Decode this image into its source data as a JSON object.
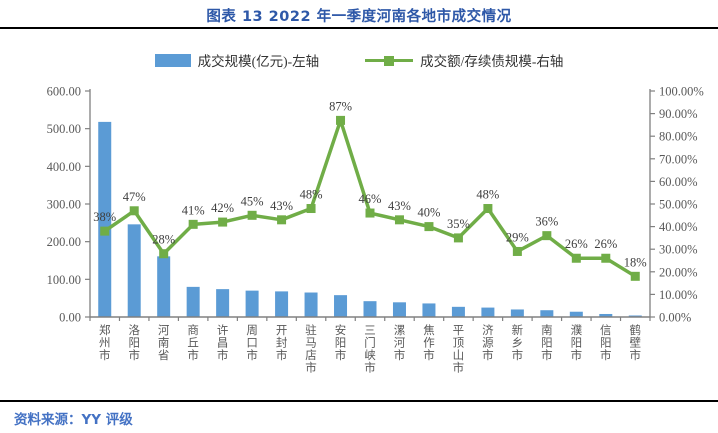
{
  "header": {
    "title": "图表 13 2022 年一季度河南各地市成交情况"
  },
  "legend": {
    "items": [
      {
        "label": "成交规模(亿元)-左轴",
        "type": "bar"
      },
      {
        "label": "成交额/存续债规模-右轴",
        "type": "line"
      }
    ]
  },
  "footer": {
    "source": "资料来源：YY 评级"
  },
  "colors": {
    "bar": "#5B9BD5",
    "line": "#70AD47",
    "axis": "#808080",
    "tick_text": "#595959",
    "value_label": "#404040",
    "category_text": "#595959",
    "title": "#2E58A8",
    "source": "#4472C4"
  },
  "chart_data": {
    "type": "bar",
    "title": "图表 13 2022 年一季度河南各地市成交情况",
    "categories": [
      "郑州市",
      "洛阳市",
      "河南省",
      "商丘市",
      "许昌市",
      "周口市",
      "开封市",
      "驻马店市",
      "安阳市",
      "三门峡市",
      "漯河市",
      "焦作市",
      "平顶山市",
      "济源市",
      "新乡市",
      "南阳市",
      "濮阳市",
      "信阳市",
      "鹤壁市"
    ],
    "series": [
      {
        "name": "成交规模(亿元)-左轴",
        "type": "bar",
        "axis": "left",
        "values": [
          518,
          246,
          161,
          80,
          74,
          70,
          68,
          65,
          58,
          42,
          39,
          36,
          27,
          25,
          20,
          18,
          14,
          8,
          4
        ]
      },
      {
        "name": "成交额/存续债规模-右轴",
        "type": "line",
        "axis": "right",
        "values": [
          38,
          47,
          28,
          41,
          42,
          45,
          43,
          48,
          87,
          46,
          43,
          40,
          35,
          48,
          29,
          36,
          26,
          26,
          18
        ],
        "labels": [
          "38%",
          "47%",
          "28%",
          "41%",
          "42%",
          "45%",
          "43%",
          "48%",
          "87%",
          "46%",
          "43%",
          "40%",
          "35%",
          "48%",
          "29%",
          "36%",
          "26%",
          "26%",
          "18%"
        ]
      }
    ],
    "left_axis": {
      "min": 0,
      "max": 600,
      "step": 100,
      "suffix": ""
    },
    "right_axis": {
      "min": 0,
      "max": 100,
      "step": 10,
      "suffix": "%"
    },
    "grid": false,
    "legend_position": "top"
  }
}
